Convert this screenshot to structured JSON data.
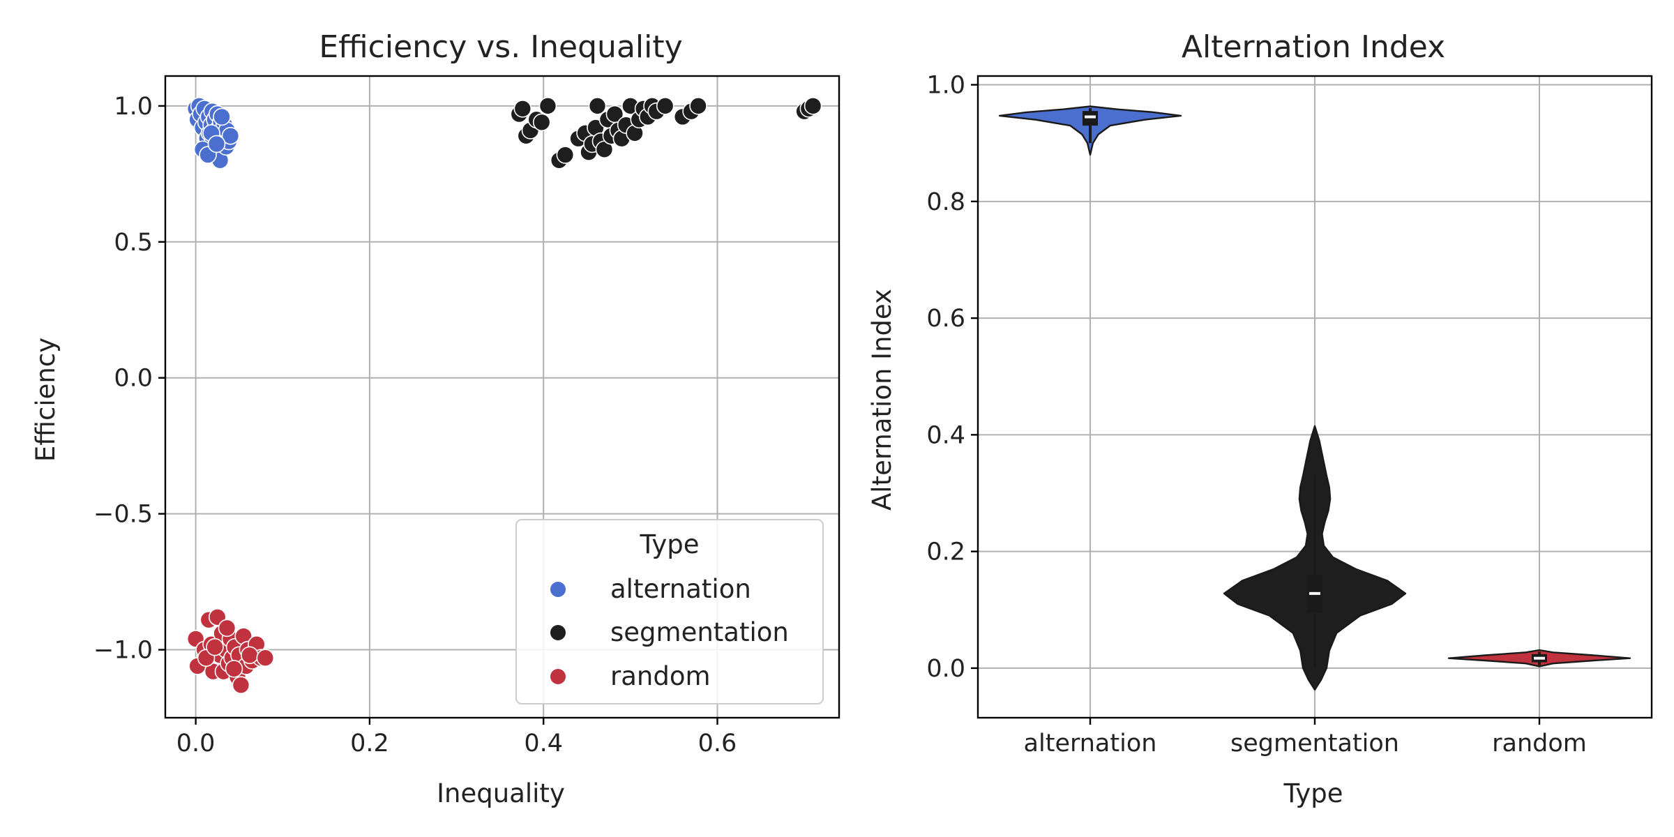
{
  "colors": {
    "alternation": "#4a6fcf",
    "segmentation": "#1e1e1e",
    "random": "#c0323e",
    "grid": "#b0b0b0"
  },
  "chart_data": [
    {
      "type": "scatter",
      "title": "Efficiency vs. Inequality",
      "xlabel": "Inequality",
      "ylabel": "Efficiency",
      "xlim": [
        -0.035,
        0.74
      ],
      "ylim": [
        -1.25,
        1.11
      ],
      "xticks": [
        0.0,
        0.2,
        0.4,
        0.6
      ],
      "xtick_labels": [
        "0.0",
        "0.2",
        "0.4",
        "0.6"
      ],
      "yticks": [
        1.0,
        0.5,
        0.0,
        -0.5,
        -1.0
      ],
      "ytick_labels": [
        "1.0",
        "0.5",
        "0.0",
        "−0.5",
        "−1.0"
      ],
      "grid": true,
      "legend": {
        "title": "Type",
        "placement": "lower-right",
        "entries": [
          "alternation",
          "segmentation",
          "random"
        ]
      },
      "series": [
        {
          "name": "alternation",
          "points": [
            [
              0.0,
              0.99
            ],
            [
              0.002,
              0.95
            ],
            [
              0.004,
              1.0
            ],
            [
              0.006,
              0.97
            ],
            [
              0.008,
              0.92
            ],
            [
              0.01,
              0.99
            ],
            [
              0.012,
              0.94
            ],
            [
              0.013,
              0.88
            ],
            [
              0.015,
              0.96
            ],
            [
              0.016,
              0.9
            ],
            [
              0.017,
              0.85
            ],
            [
              0.018,
              0.93
            ],
            [
              0.019,
              0.98
            ],
            [
              0.02,
              0.87
            ],
            [
              0.021,
              0.91
            ],
            [
              0.022,
              0.95
            ],
            [
              0.023,
              0.83
            ],
            [
              0.024,
              0.89
            ],
            [
              0.025,
              0.97
            ],
            [
              0.026,
              0.86
            ],
            [
              0.027,
              0.92
            ],
            [
              0.028,
              0.8
            ],
            [
              0.029,
              0.94
            ],
            [
              0.03,
              0.88
            ],
            [
              0.031,
              0.9
            ],
            [
              0.033,
              0.93
            ],
            [
              0.035,
              0.85
            ],
            [
              0.036,
              0.91
            ],
            [
              0.038,
              0.87
            ],
            [
              0.04,
              0.89
            ],
            [
              0.008,
              0.84
            ],
            [
              0.014,
              0.82
            ],
            [
              0.03,
              0.96
            ],
            [
              0.018,
              0.9
            ],
            [
              0.024,
              0.86
            ]
          ]
        },
        {
          "name": "segmentation",
          "points": [
            [
              0.372,
              0.97
            ],
            [
              0.376,
              0.99
            ],
            [
              0.38,
              0.89
            ],
            [
              0.385,
              0.91
            ],
            [
              0.392,
              0.95
            ],
            [
              0.398,
              0.94
            ],
            [
              0.405,
              1.0
            ],
            [
              0.418,
              0.8
            ],
            [
              0.425,
              0.82
            ],
            [
              0.44,
              0.88
            ],
            [
              0.448,
              0.9
            ],
            [
              0.452,
              0.83
            ],
            [
              0.456,
              0.86
            ],
            [
              0.46,
              0.92
            ],
            [
              0.462,
              1.0
            ],
            [
              0.466,
              0.87
            ],
            [
              0.47,
              0.84
            ],
            [
              0.474,
              0.95
            ],
            [
              0.478,
              0.89
            ],
            [
              0.482,
              0.97
            ],
            [
              0.486,
              0.91
            ],
            [
              0.49,
              0.88
            ],
            [
              0.495,
              0.93
            ],
            [
              0.5,
              1.0
            ],
            [
              0.505,
              0.9
            ],
            [
              0.51,
              0.95
            ],
            [
              0.515,
              0.99
            ],
            [
              0.52,
              0.96
            ],
            [
              0.525,
              1.0
            ],
            [
              0.53,
              0.98
            ],
            [
              0.54,
              1.0
            ],
            [
              0.56,
              0.96
            ],
            [
              0.57,
              0.98
            ],
            [
              0.578,
              1.0
            ],
            [
              0.7,
              0.98
            ],
            [
              0.705,
              0.99
            ],
            [
              0.71,
              1.0
            ]
          ]
        },
        {
          "name": "random",
          "points": [
            [
              0.0,
              -0.96
            ],
            [
              0.002,
              -1.06
            ],
            [
              0.01,
              -1.0
            ],
            [
              0.015,
              -0.89
            ],
            [
              0.018,
              -0.98
            ],
            [
              0.02,
              -1.08
            ],
            [
              0.025,
              -0.88
            ],
            [
              0.028,
              -1.02
            ],
            [
              0.03,
              -0.94
            ],
            [
              0.032,
              -1.08
            ],
            [
              0.035,
              -1.0
            ],
            [
              0.038,
              -1.05
            ],
            [
              0.04,
              -0.96
            ],
            [
              0.042,
              -1.03
            ],
            [
              0.045,
              -0.99
            ],
            [
              0.048,
              -1.1
            ],
            [
              0.05,
              -1.02
            ],
            [
              0.052,
              -1.13
            ],
            [
              0.055,
              -0.95
            ],
            [
              0.058,
              -1.06
            ],
            [
              0.06,
              -1.0
            ],
            [
              0.065,
              -1.04
            ],
            [
              0.07,
              -0.98
            ],
            [
              0.075,
              -1.03
            ],
            [
              0.012,
              -1.03
            ],
            [
              0.022,
              -0.99
            ],
            [
              0.036,
              -0.92
            ],
            [
              0.044,
              -1.07
            ],
            [
              0.062,
              -1.02
            ],
            [
              0.08,
              -1.03
            ]
          ]
        }
      ]
    },
    {
      "type": "violin",
      "title": "Alternation Index",
      "xlabel": "Type",
      "ylabel": "Alternation Index",
      "categories": [
        "alternation",
        "segmentation",
        "random"
      ],
      "ylim": [
        -0.085,
        1.015
      ],
      "yticks": [
        0.0,
        0.2,
        0.4,
        0.6,
        0.8,
        1.0
      ],
      "ytick_labels": [
        "0.0",
        "0.2",
        "0.4",
        "0.6",
        "0.8",
        "1.0"
      ],
      "grid": true,
      "violins": [
        {
          "category": "alternation",
          "median": 0.945,
          "q1": 0.93,
          "q3": 0.955,
          "whisker_low": 0.9,
          "whisker_high": 0.96,
          "density": [
            [
              0.88,
              0.0
            ],
            [
              0.9,
              0.03
            ],
            [
              0.915,
              0.09
            ],
            [
              0.93,
              0.22
            ],
            [
              0.94,
              0.6
            ],
            [
              0.947,
              1.0
            ],
            [
              0.953,
              0.7
            ],
            [
              0.958,
              0.3
            ],
            [
              0.963,
              0.0
            ]
          ]
        },
        {
          "category": "segmentation",
          "median": 0.128,
          "q1": 0.095,
          "q3": 0.16,
          "whisker_low": 0.0,
          "whisker_high": 0.33,
          "density": [
            [
              -0.037,
              0.0
            ],
            [
              -0.02,
              0.07
            ],
            [
              0.0,
              0.13
            ],
            [
              0.03,
              0.16
            ],
            [
              0.06,
              0.24
            ],
            [
              0.09,
              0.5
            ],
            [
              0.11,
              0.85
            ],
            [
              0.128,
              1.0
            ],
            [
              0.15,
              0.8
            ],
            [
              0.17,
              0.45
            ],
            [
              0.19,
              0.2
            ],
            [
              0.21,
              0.1
            ],
            [
              0.23,
              0.08
            ],
            [
              0.25,
              0.11
            ],
            [
              0.27,
              0.15
            ],
            [
              0.29,
              0.17
            ],
            [
              0.31,
              0.16
            ],
            [
              0.33,
              0.13
            ],
            [
              0.36,
              0.09
            ],
            [
              0.39,
              0.05
            ],
            [
              0.415,
              0.0
            ]
          ]
        },
        {
          "category": "random",
          "median": 0.017,
          "q1": 0.01,
          "q3": 0.024,
          "whisker_low": 0.005,
          "whisker_high": 0.028,
          "density": [
            [
              0.003,
              0.0
            ],
            [
              0.008,
              0.15
            ],
            [
              0.013,
              0.6
            ],
            [
              0.017,
              1.0
            ],
            [
              0.022,
              0.6
            ],
            [
              0.027,
              0.15
            ],
            [
              0.031,
              0.0
            ]
          ]
        }
      ]
    }
  ]
}
